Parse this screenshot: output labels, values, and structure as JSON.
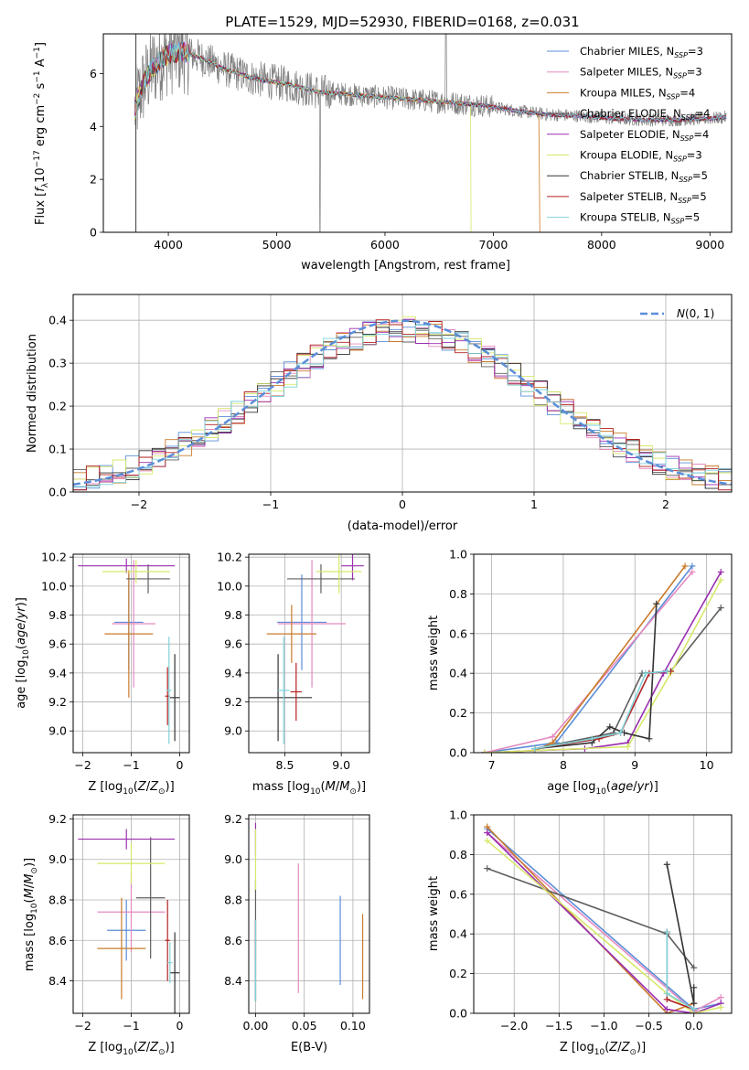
{
  "figure_title": "PLATE=1529, MJD=52930, FIBERID=0168, z=0.031",
  "colors": {
    "series": [
      "#5b8ed8",
      "#e58ac0",
      "#c97b2a",
      "#5f5f5f",
      "#9a2fb0",
      "#d6e86a",
      "#333333",
      "#b22222",
      "#7fd3d8"
    ],
    "data": "#7f7f7f",
    "gaussian": "#5b8ed8",
    "grid": "#b0b0b0"
  },
  "chart_data": [
    {
      "id": "spectrum",
      "type": "line",
      "title": "PLATE=1529, MJD=52930, FIBERID=0168, z=0.031",
      "xlabel": "wavelength [Angstrom, rest frame]",
      "ylabel": "Flux [f_λ10^-17 erg cm^-2 s^-1 A^-1]",
      "xlim": [
        3400,
        9200
      ],
      "ylim": [
        0,
        7.5
      ],
      "xticks": [
        4000,
        5000,
        6000,
        7000,
        8000,
        9000
      ],
      "yticks": [
        0,
        2,
        4,
        6
      ],
      "grid": false,
      "legend_position": "upper-right",
      "legend": [
        {
          "label": "Chabrier MILES, N_SSP=3",
          "base": "Chabrier MILES, N",
          "sub": "SSP",
          "val": "=3"
        },
        {
          "label": "Salpeter MILES, N_SSP=3",
          "base": "Salpeter MILES, N",
          "sub": "SSP",
          "val": "=3"
        },
        {
          "label": "Kroupa MILES, N_SSP=4",
          "base": "Kroupa MILES, N",
          "sub": "SSP",
          "val": "=4"
        },
        {
          "label": "Chabrier ELODIE, N_SSP=4",
          "base": "Chabrier ELODIE, N",
          "sub": "SSP",
          "val": "=4"
        },
        {
          "label": "Salpeter ELODIE, N_SSP=4",
          "base": "Salpeter ELODIE, N",
          "sub": "SSP",
          "val": "=4"
        },
        {
          "label": "Kroupa ELODIE, N_SSP=3",
          "base": "Kroupa ELODIE, N",
          "sub": "SSP",
          "val": "=3"
        },
        {
          "label": "Chabrier STELIB, N_SSP=5",
          "base": "Chabrier STELIB, N",
          "sub": "SSP",
          "val": "=5"
        },
        {
          "label": "Salpeter STELIB, N_SSP=5",
          "base": "Salpeter STELIB, N",
          "sub": "SSP",
          "val": "=5"
        },
        {
          "label": "Kroupa STELIB, N_SSP=5",
          "base": "Kroupa STELIB, N",
          "sub": "SSP",
          "val": "=5"
        }
      ],
      "continuum": {
        "wavelength": [
          3680,
          3750,
          3850,
          3950,
          4050,
          4150,
          4300,
          4500,
          4800,
          5100,
          5400,
          5700,
          6000,
          6300,
          6600,
          6900,
          7200,
          7500,
          7800,
          8100,
          8400,
          8700,
          9000,
          9150
        ],
        "flux": [
          4.5,
          5.4,
          6.2,
          6.6,
          6.8,
          6.8,
          6.6,
          6.2,
          5.8,
          5.6,
          5.3,
          5.2,
          5.1,
          5.0,
          4.9,
          4.8,
          4.6,
          4.45,
          4.4,
          4.3,
          4.25,
          4.25,
          4.3,
          4.35
        ]
      }
    },
    {
      "id": "residuals",
      "type": "histogram",
      "xlabel": "(data-model)/error",
      "ylabel": "Normed distribution",
      "xlim": [
        -2.5,
        2.5
      ],
      "ylim": [
        0,
        0.46
      ],
      "xticks": [
        -2,
        -1,
        0,
        1,
        2
      ],
      "yticks": [
        0.0,
        0.1,
        0.2,
        0.3,
        0.4
      ],
      "grid": true,
      "legend_position": "upper-right",
      "legend_label": "N(0,1)",
      "gaussian": {
        "mean": 0,
        "sigma": 1
      }
    },
    {
      "id": "age-vs-z",
      "type": "scatter",
      "xlabel": "Z [log10(Z/Z⊙)]",
      "ylabel": "age [log10(age/yr)]",
      "xlim": [
        -2.2,
        0.2
      ],
      "ylim": [
        8.85,
        10.22
      ],
      "xticks": [
        -2,
        -1,
        0
      ],
      "yticks": [
        9.0,
        9.2,
        9.4,
        9.6,
        9.8,
        10.0,
        10.2
      ],
      "grid": true,
      "points": [
        {
          "series": 0,
          "x": -1.05,
          "y": 9.75,
          "xerr": 0.3,
          "yerr": 0.33
        },
        {
          "series": 1,
          "x": -0.95,
          "y": 9.74,
          "xerr": 0.45,
          "yerr": 0.44
        },
        {
          "series": 2,
          "x": -1.05,
          "y": 9.67,
          "xerr": 0.5,
          "yerr": 0.44
        },
        {
          "series": 3,
          "x": -0.65,
          "y": 10.05,
          "xerr": 0.45,
          "yerr": 0.1
        },
        {
          "series": 4,
          "x": -1.1,
          "y": 10.14,
          "xerr": 1.0,
          "yerr": 0.05
        },
        {
          "series": 5,
          "x": -0.9,
          "y": 10.1,
          "xerr": 0.7,
          "yerr": 0.08
        },
        {
          "series": 6,
          "x": -0.1,
          "y": 9.23,
          "xerr": 0.1,
          "yerr": 0.3
        },
        {
          "series": 7,
          "x": -0.25,
          "y": 9.24,
          "xerr": 0.05,
          "yerr": 0.2
        },
        {
          "series": 8,
          "x": -0.22,
          "y": 9.28,
          "xerr": 0.05,
          "yerr": 0.37
        }
      ]
    },
    {
      "id": "age-vs-mass",
      "type": "scatter",
      "xlabel": "mass [log10(M/M⊙)]",
      "ylabel": "",
      "xlim": [
        8.18,
        9.25
      ],
      "ylim": [
        8.85,
        10.22
      ],
      "xticks": [
        8.5,
        9.0
      ],
      "yticks": [
        9.0,
        9.2,
        9.4,
        9.6,
        9.8,
        10.0,
        10.2
      ],
      "grid": true,
      "points": [
        {
          "series": 0,
          "x": 8.65,
          "y": 9.75,
          "xerr": 0.22,
          "yerr": 0.33
        },
        {
          "series": 1,
          "x": 8.74,
          "y": 9.74,
          "xerr": 0.3,
          "yerr": 0.44
        },
        {
          "series": 2,
          "x": 8.56,
          "y": 9.67,
          "xerr": 0.22,
          "yerr": 0.2
        },
        {
          "series": 3,
          "x": 8.82,
          "y": 10.05,
          "xerr": 0.3,
          "yerr": 0.1
        },
        {
          "series": 4,
          "x": 9.1,
          "y": 10.14,
          "xerr": 0.1,
          "yerr": 0.1
        },
        {
          "series": 5,
          "x": 8.98,
          "y": 10.1,
          "xerr": 0.2,
          "yerr": 0.15
        },
        {
          "series": 6,
          "x": 8.44,
          "y": 9.23,
          "xerr": 0.3,
          "yerr": 0.3
        },
        {
          "series": 7,
          "x": 8.6,
          "y": 9.27,
          "xerr": 0.05,
          "yerr": 0.2
        },
        {
          "series": 8,
          "x": 8.49,
          "y": 9.28,
          "xerr": 0.05,
          "yerr": 0.37
        }
      ]
    },
    {
      "id": "mass-weight-vs-age",
      "type": "line",
      "xlabel": "age [log10(age/yr)]",
      "ylabel": "mass weight",
      "xlim": [
        6.75,
        10.35
      ],
      "ylim": [
        0,
        1.0
      ],
      "xticks": [
        7,
        8,
        9,
        10
      ],
      "yticks": [
        0.0,
        0.2,
        0.4,
        0.6,
        0.8,
        1.0
      ],
      "grid": true,
      "series": [
        {
          "series": 0,
          "x": [
            6.9,
            7.9,
            9.8
          ],
          "y": [
            0.0,
            0.05,
            0.94
          ]
        },
        {
          "series": 1,
          "x": [
            6.9,
            7.85,
            9.8
          ],
          "y": [
            0.0,
            0.08,
            0.91
          ]
        },
        {
          "series": 2,
          "x": [
            6.9,
            7.6,
            7.85,
            9.7
          ],
          "y": [
            0.0,
            0.01,
            0.05,
            0.94
          ]
        },
        {
          "series": 3,
          "x": [
            7.6,
            8.7,
            9.1,
            9.5,
            10.2
          ],
          "y": [
            0.02,
            0.1,
            0.4,
            0.41,
            0.73
          ]
        },
        {
          "series": 4,
          "x": [
            6.9,
            8.3,
            8.9,
            9.4,
            10.2
          ],
          "y": [
            0.0,
            0.02,
            0.05,
            0.4,
            0.91
          ]
        },
        {
          "series": 5,
          "x": [
            6.9,
            8.9,
            9.5,
            10.2
          ],
          "y": [
            0.0,
            0.03,
            0.4,
            0.87
          ]
        },
        {
          "series": 6,
          "x": [
            7.6,
            8.4,
            8.65,
            8.85,
            9.2,
            9.3
          ],
          "y": [
            0.02,
            0.05,
            0.13,
            0.1,
            0.07,
            0.75
          ]
        },
        {
          "series": 7,
          "x": [
            7.6,
            8.5,
            8.8,
            9.2,
            9.5
          ],
          "y": [
            0.02,
            0.07,
            0.1,
            0.4,
            0.41
          ]
        },
        {
          "series": 8,
          "x": [
            7.6,
            8.4,
            8.8,
            9.15,
            9.45
          ],
          "y": [
            0.02,
            0.07,
            0.1,
            0.4,
            0.41
          ]
        }
      ]
    },
    {
      "id": "mass-vs-z",
      "type": "scatter",
      "xlabel": "Z [log10(Z/Z⊙)]",
      "ylabel": "mass [log10(M/M⊙)]",
      "xlim": [
        -2.2,
        0.2
      ],
      "ylim": [
        8.24,
        9.22
      ],
      "xticks": [
        -2,
        -1,
        0
      ],
      "yticks": [
        8.4,
        8.6,
        8.8,
        9.0,
        9.2
      ],
      "grid": true,
      "points": [
        {
          "series": 0,
          "x": -1.1,
          "y": 8.65,
          "xerr": 0.4,
          "yerr": 0.15
        },
        {
          "series": 1,
          "x": -1.0,
          "y": 8.74,
          "xerr": 0.7,
          "yerr": 0.2
        },
        {
          "series": 2,
          "x": -1.2,
          "y": 8.56,
          "xerr": 0.5,
          "yerr": 0.25
        },
        {
          "series": 3,
          "x": -0.6,
          "y": 8.81,
          "xerr": 0.3,
          "yerr": 0.3
        },
        {
          "series": 4,
          "x": -1.1,
          "y": 9.1,
          "xerr": 1.0,
          "yerr": 0.05
        },
        {
          "series": 5,
          "x": -1.0,
          "y": 8.98,
          "xerr": 0.7,
          "yerr": 0.1
        },
        {
          "series": 6,
          "x": -0.1,
          "y": 8.44,
          "xerr": 0.1,
          "yerr": 0.2
        },
        {
          "series": 7,
          "x": -0.25,
          "y": 8.6,
          "xerr": 0.05,
          "yerr": 0.2
        },
        {
          "series": 8,
          "x": -0.2,
          "y": 8.49,
          "xerr": 0.05,
          "yerr": 0.1
        }
      ]
    },
    {
      "id": "mass-vs-ebv",
      "type": "scatter",
      "xlabel": "E(B-V)",
      "ylabel": "",
      "xlim": [
        -0.007,
        0.117
      ],
      "ylim": [
        8.24,
        9.22
      ],
      "xticks": [
        0.0,
        0.05,
        0.1
      ],
      "yticks": [
        8.4,
        8.6,
        8.8,
        9.0,
        9.2
      ],
      "grid": true,
      "points": [
        {
          "series": 0,
          "x": 0.087,
          "y": 8.6,
          "yerr": 0.22
        },
        {
          "series": 1,
          "x": 0.044,
          "y": 8.66,
          "yerr": 0.32
        },
        {
          "series": 2,
          "x": 0.11,
          "y": 8.52,
          "yerr": 0.21
        },
        {
          "series": 3,
          "x": 0.0,
          "y": 8.6,
          "yerr": 0.3
        },
        {
          "series": 4,
          "x": 0.0,
          "y": 9.1,
          "yerr": 0.08
        },
        {
          "series": 5,
          "x": 0.0,
          "y": 9.0,
          "yerr": 0.15
        },
        {
          "series": 6,
          "x": 0.0,
          "y": 8.5,
          "yerr": 0.2
        },
        {
          "series": 7,
          "x": 0.0,
          "y": 8.6,
          "yerr": 0.1
        },
        {
          "series": 8,
          "x": 0.0,
          "y": 8.5,
          "yerr": 0.2
        }
      ]
    },
    {
      "id": "mass-weight-vs-z",
      "type": "line",
      "xlabel": "Z [log10(Z/Z⊙)]",
      "ylabel": "mass weight",
      "xlim": [
        -2.45,
        0.42
      ],
      "ylim": [
        0,
        1.0
      ],
      "xticks": [
        -2.0,
        -1.5,
        -1.0,
        -0.5,
        0.0
      ],
      "yticks": [
        0.0,
        0.2,
        0.4,
        0.6,
        0.8,
        1.0
      ],
      "grid": true,
      "series": [
        {
          "series": 0,
          "x": [
            -2.3,
            0.0,
            0.3
          ],
          "y": [
            0.93,
            0.02,
            0.05
          ]
        },
        {
          "series": 1,
          "x": [
            -2.3,
            0.0,
            0.3
          ],
          "y": [
            0.91,
            0.01,
            0.08
          ]
        },
        {
          "series": 2,
          "x": [
            -2.3,
            -0.3,
            0.0
          ],
          "y": [
            0.94,
            0.0,
            0.05
          ]
        },
        {
          "series": 3,
          "x": [
            -2.3,
            -0.3,
            0.0
          ],
          "y": [
            0.73,
            0.4,
            0.23
          ]
        },
        {
          "series": 4,
          "x": [
            -2.3,
            -0.3,
            0.0,
            0.3
          ],
          "y": [
            0.91,
            0.02,
            0.0,
            0.05
          ]
        },
        {
          "series": 5,
          "x": [
            -2.3,
            -0.3,
            0.0,
            0.3
          ],
          "y": [
            0.87,
            0.1,
            0.0,
            0.03
          ]
        },
        {
          "series": 6,
          "x": [
            -0.3,
            0.0,
            0.0
          ],
          "y": [
            0.75,
            0.05,
            0.13
          ]
        },
        {
          "series": 7,
          "x": [
            -0.3,
            -0.3,
            0.0
          ],
          "y": [
            0.41,
            0.07,
            0.02
          ]
        },
        {
          "series": 8,
          "x": [
            -0.3,
            -0.3,
            0.0
          ],
          "y": [
            0.41,
            0.1,
            0.02
          ]
        }
      ]
    }
  ]
}
